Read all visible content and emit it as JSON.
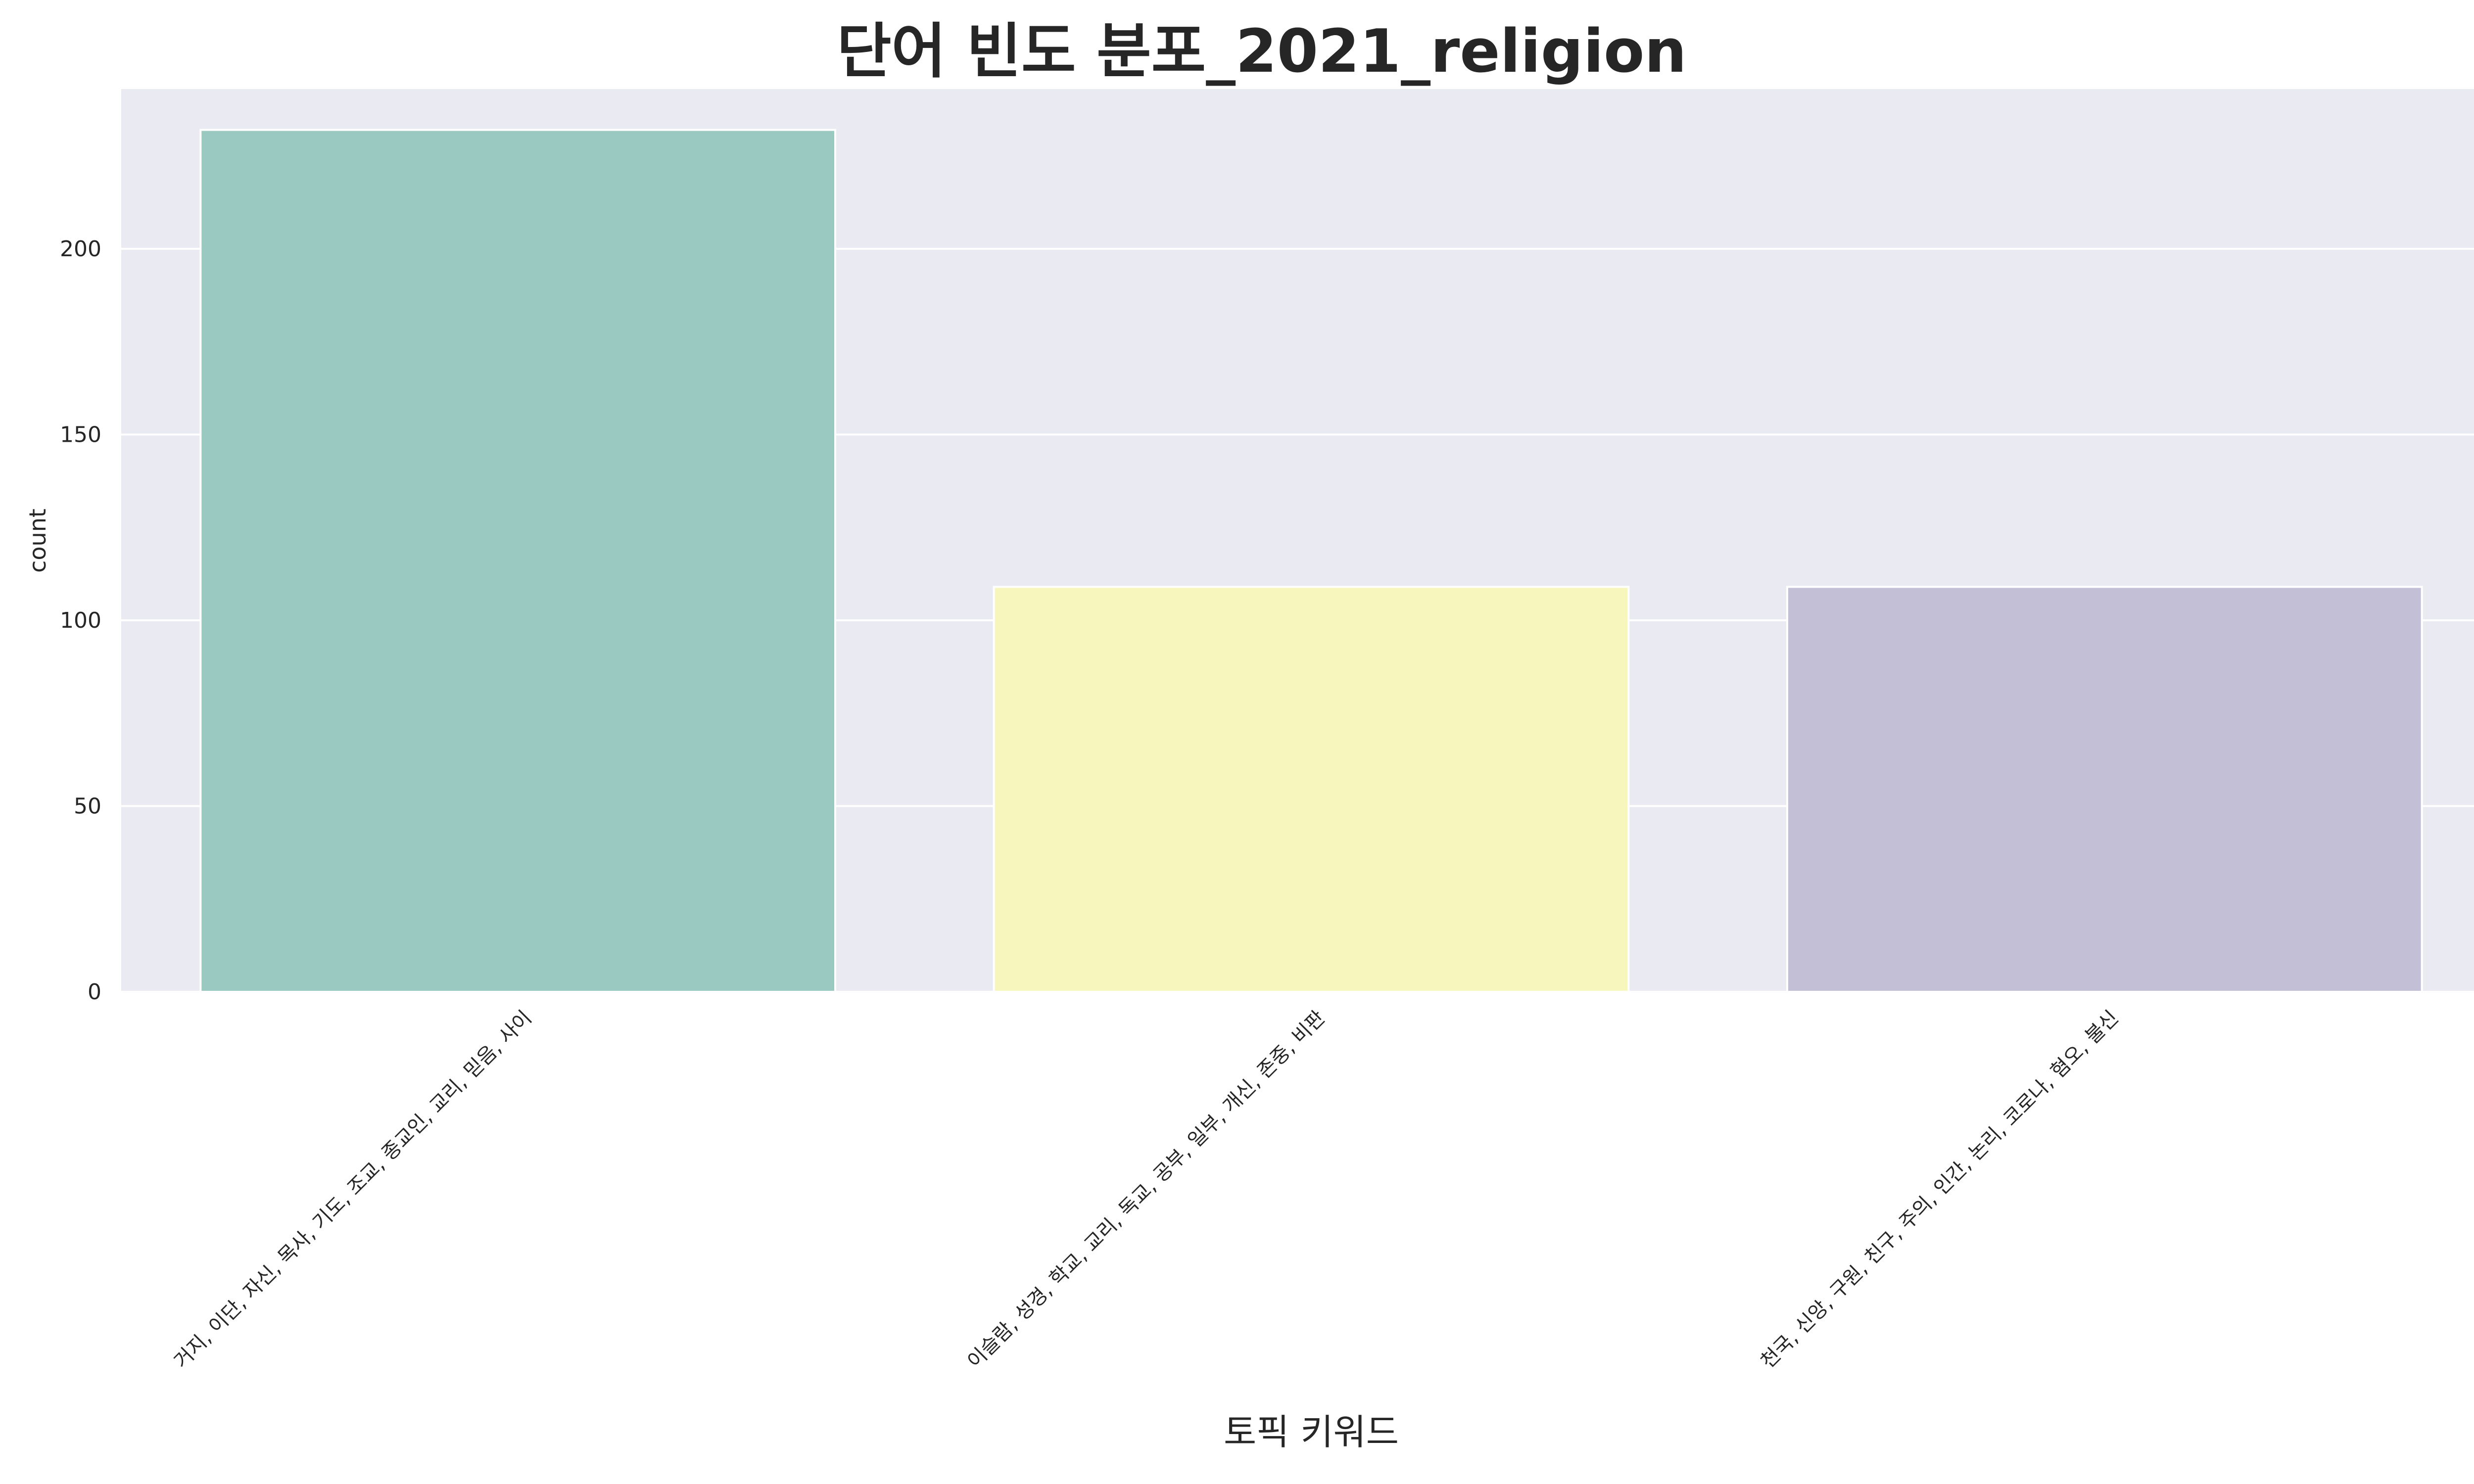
{
  "chart_data": {
    "type": "bar",
    "title": "단어 빈도 분포_2021_religion",
    "xlabel": "토픽 키워드",
    "ylabel": "count",
    "categories": [
      "거지, 이단, 자신, 목사, 기도, 조교, 종교인, 교리, 믿음, 사이",
      "이슬람, 성경, 학교, 교리, 독교, 공부, 일부, 개신, 존중, 비판",
      "천국, 신앙, 구원, 친구, 주의, 인간, 논리, 코로나, 혐오, 불신"
    ],
    "values": [
      232,
      109,
      109
    ],
    "colors": [
      "#99c9c0",
      "#f7f6bc",
      "#c3bfd7"
    ],
    "ylim": [
      0,
      243
    ],
    "yticks": [
      0,
      50,
      100,
      150,
      200
    ],
    "grid": true,
    "background": "#eaeaf2"
  }
}
